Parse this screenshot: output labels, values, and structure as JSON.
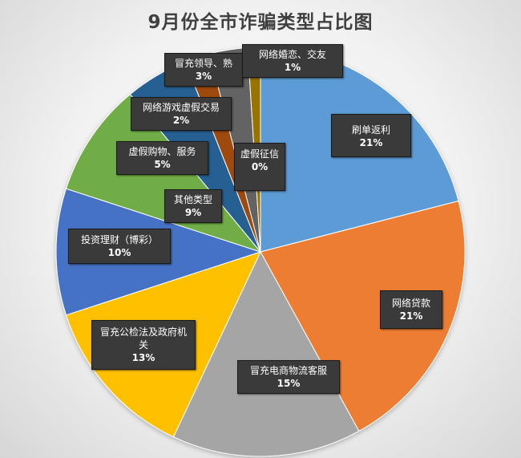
{
  "chart_data": {
    "type": "pie",
    "title": "9月份全市诈骗类型占比图",
    "slices": [
      {
        "label": "刷单返利",
        "value": 21,
        "value_label": "21%",
        "color": "#5b9bd5"
      },
      {
        "label": "网络贷款",
        "value": 21,
        "value_label": "21%",
        "color": "#ed7d31"
      },
      {
        "label": "冒充电商物流客服",
        "value": 15,
        "value_label": "15%",
        "color": "#a5a5a5"
      },
      {
        "label": "冒充公检法及政府机关",
        "value": 13,
        "value_label": "13%",
        "color": "#ffc000"
      },
      {
        "label": "投资理财（博彩）",
        "value": 10,
        "value_label": "10%",
        "color": "#4472c4"
      },
      {
        "label": "其他类型",
        "value": 9,
        "value_label": "9%",
        "color": "#70ad47"
      },
      {
        "label": "虚假购物、服务",
        "value": 5,
        "value_label": "5%",
        "color": "#255e91"
      },
      {
        "label": "网络游戏虚假交易",
        "value": 2,
        "value_label": "2%",
        "color": "#9e480e"
      },
      {
        "label": "冒充领导、熟",
        "value": 3,
        "value_label": "3%",
        "color": "#636363"
      },
      {
        "label": "网络婚恋、交友",
        "value": 1,
        "value_label": "1%",
        "color": "#997300"
      },
      {
        "label": "虚假征信",
        "value": 0,
        "value_label": "0%",
        "color": "#264478"
      }
    ],
    "legend": "none",
    "data_labels": "callout boxes with category name and percentage"
  }
}
